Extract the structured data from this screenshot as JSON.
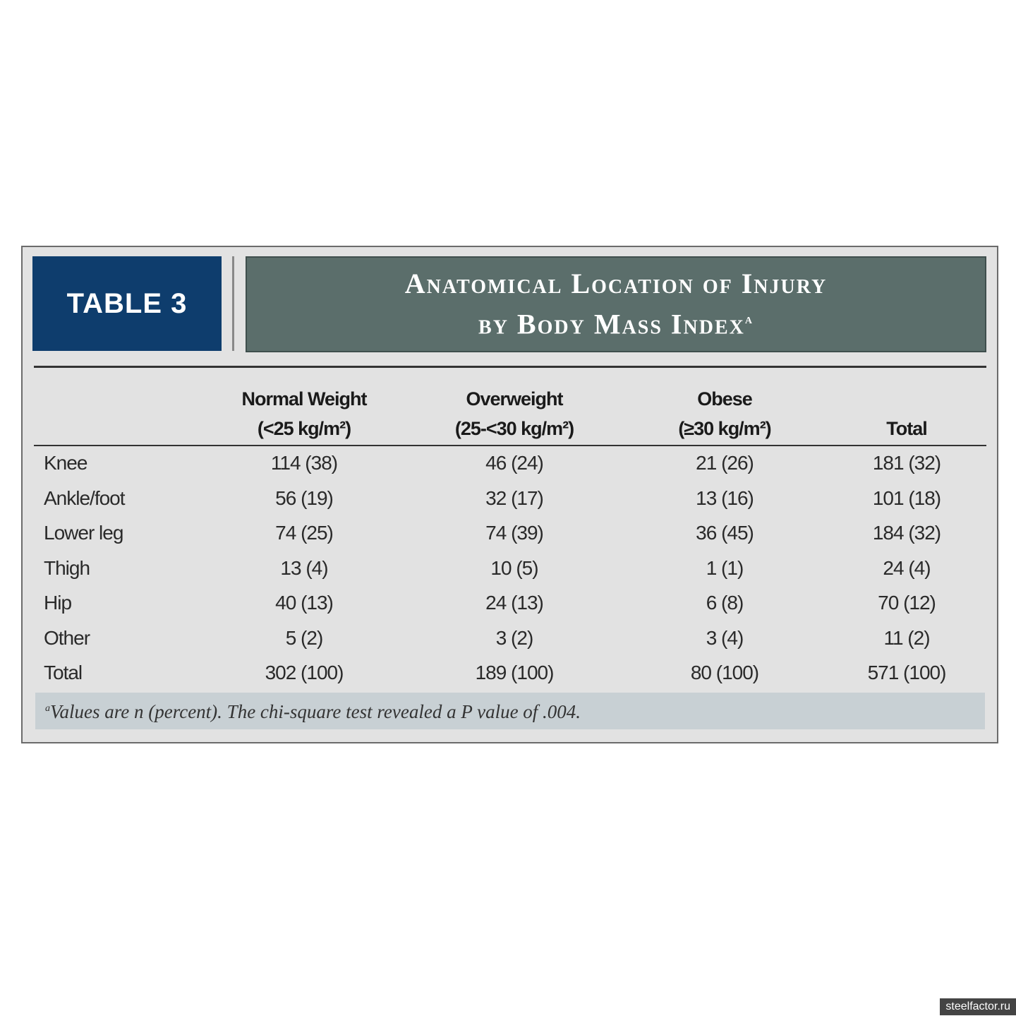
{
  "header": {
    "tag": "TABLE 3",
    "title_line1": "Anatomical Location of Injury",
    "title_line2": "by Body Mass Index",
    "title_note": "a"
  },
  "table": {
    "columns": [
      {
        "name": "Normal Weight",
        "unit": "(<25 kg/m²)"
      },
      {
        "name": "Overweight",
        "unit": "(25-<30 kg/m²)"
      },
      {
        "name": "Obese",
        "unit": "(≥30 kg/m²)"
      },
      {
        "name": "Total"
      }
    ],
    "rows": [
      {
        "label": "Knee",
        "cells": [
          "114 (38)",
          "46 (24)",
          "21 (26)",
          "181 (32)"
        ]
      },
      {
        "label": "Ankle/foot",
        "cells": [
          "56 (19)",
          "32 (17)",
          "13 (16)",
          "101 (18)"
        ]
      },
      {
        "label": "Lower leg",
        "cells": [
          "74 (25)",
          "74 (39)",
          "36 (45)",
          "184 (32)"
        ]
      },
      {
        "label": "Thigh",
        "cells": [
          "13 (4)",
          "10 (5)",
          "1 (1)",
          "24 (4)"
        ]
      },
      {
        "label": "Hip",
        "cells": [
          "40 (13)",
          "24 (13)",
          "6 (8)",
          "70 (12)"
        ]
      },
      {
        "label": "Other",
        "cells": [
          "5 (2)",
          "3 (2)",
          "3 (4)",
          "11 (2)"
        ]
      },
      {
        "label": "Total",
        "cells": [
          "302 (100)",
          "189 (100)",
          "80 (100)",
          "571 (100)"
        ]
      }
    ]
  },
  "footnote": {
    "marker": "a",
    "text": "Values are n (percent). The chi-square test revealed a P value of .004."
  },
  "watermark": "steelfactor.ru"
}
